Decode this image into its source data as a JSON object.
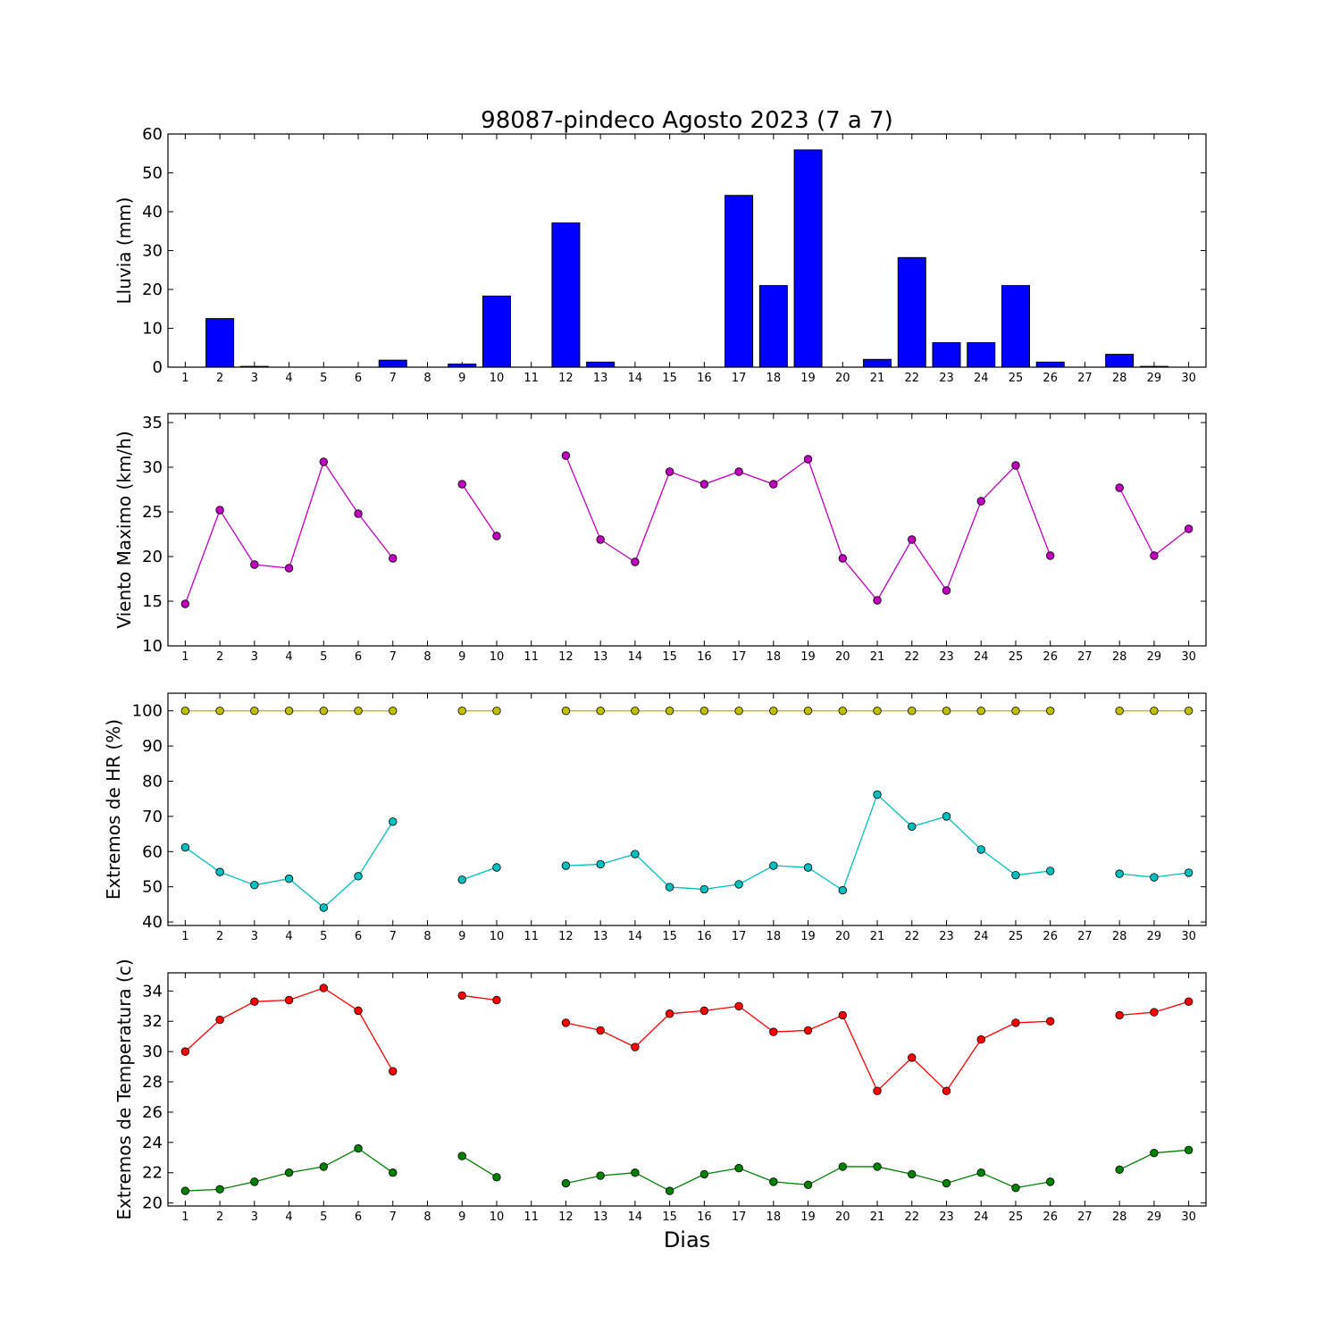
{
  "chart_data": [
    {
      "type": "bar",
      "title": "98087-pindeco Agosto 2023  (7 a 7)",
      "ylabel": "Lluvia (mm)",
      "xlabel": "",
      "ylim": [
        0,
        60
      ],
      "yticks": [
        0,
        10,
        20,
        30,
        40,
        50,
        60
      ],
      "x": [
        1,
        2,
        3,
        4,
        5,
        6,
        7,
        8,
        9,
        10,
        11,
        12,
        13,
        14,
        15,
        16,
        17,
        18,
        19,
        20,
        21,
        22,
        23,
        24,
        25,
        26,
        27,
        28,
        29,
        30
      ],
      "series": [
        {
          "color": "#0000ff",
          "values": [
            0,
            12.5,
            0.2,
            0,
            0,
            0,
            1.8,
            null,
            0.8,
            18.3,
            null,
            37.1,
            1.3,
            0,
            0,
            0,
            44.2,
            21,
            55.9,
            0,
            2,
            28.2,
            6.3,
            6.3,
            21,
            1.3,
            null,
            3.3,
            0.2,
            0
          ]
        }
      ]
    },
    {
      "type": "line",
      "ylabel": "Viento Maximo (km/h)",
      "ylim": [
        10,
        36
      ],
      "yticks": [
        10,
        15,
        20,
        25,
        30,
        35
      ],
      "x": [
        1,
        2,
        3,
        4,
        5,
        6,
        7,
        8,
        9,
        10,
        11,
        12,
        13,
        14,
        15,
        16,
        17,
        18,
        19,
        20,
        21,
        22,
        23,
        24,
        25,
        26,
        27,
        28,
        29,
        30
      ],
      "series": [
        {
          "color": "#bf00bf",
          "values": [
            14.7,
            25.2,
            19.1,
            18.7,
            30.6,
            24.8,
            19.8,
            null,
            28.1,
            22.3,
            null,
            31.3,
            21.9,
            19.4,
            29.5,
            28.1,
            29.5,
            28.1,
            30.9,
            19.8,
            15.1,
            21.9,
            16.2,
            26.2,
            30.2,
            20.1,
            null,
            27.7,
            20.1,
            23.1
          ]
        }
      ]
    },
    {
      "type": "line",
      "ylabel": "Extremos de HR (%)",
      "ylim": [
        39,
        105
      ],
      "yticks": [
        40,
        50,
        60,
        70,
        80,
        90,
        100
      ],
      "x": [
        1,
        2,
        3,
        4,
        5,
        6,
        7,
        8,
        9,
        10,
        11,
        12,
        13,
        14,
        15,
        16,
        17,
        18,
        19,
        20,
        21,
        22,
        23,
        24,
        25,
        26,
        27,
        28,
        29,
        30
      ],
      "series": [
        {
          "color": "#bfbf00",
          "values": [
            100,
            100,
            100,
            100,
            100,
            100,
            100,
            null,
            100,
            100,
            null,
            100,
            100,
            100,
            100,
            100,
            100,
            100,
            100,
            100,
            100,
            100,
            100,
            100,
            100,
            100,
            null,
            100,
            100,
            100
          ]
        },
        {
          "color": "#00bfbf",
          "values": [
            61.2,
            54.2,
            50.5,
            52.3,
            44.1,
            53,
            68.5,
            null,
            52,
            55.5,
            null,
            56,
            56.4,
            59.3,
            49.9,
            49.3,
            50.7,
            56,
            55.5,
            49,
            76.2,
            67.1,
            70,
            60.6,
            53.3,
            54.5,
            null,
            53.7,
            52.7,
            54
          ]
        }
      ]
    },
    {
      "type": "line",
      "ylabel": "Extremos de Temperatura (c)",
      "xlabel": "Dias",
      "ylim": [
        19.8,
        35.2
      ],
      "yticks": [
        20,
        22,
        24,
        26,
        28,
        30,
        32,
        34
      ],
      "x": [
        1,
        2,
        3,
        4,
        5,
        6,
        7,
        8,
        9,
        10,
        11,
        12,
        13,
        14,
        15,
        16,
        17,
        18,
        19,
        20,
        21,
        22,
        23,
        24,
        25,
        26,
        27,
        28,
        29,
        30
      ],
      "series": [
        {
          "color": "#ff0000",
          "values": [
            30,
            32.1,
            33.3,
            33.4,
            34.2,
            32.7,
            28.7,
            null,
            33.7,
            33.4,
            null,
            31.9,
            31.4,
            30.3,
            32.5,
            32.7,
            33,
            31.3,
            31.4,
            32.4,
            27.4,
            29.6,
            27.4,
            30.8,
            31.9,
            32,
            null,
            32.4,
            32.6,
            33.3
          ]
        },
        {
          "color": "#008000",
          "values": [
            20.8,
            20.9,
            21.4,
            22,
            22.4,
            23.6,
            22,
            null,
            23.1,
            21.7,
            null,
            21.3,
            21.8,
            22,
            20.8,
            21.9,
            22.3,
            21.4,
            21.2,
            22.4,
            22.4,
            21.9,
            21.3,
            22,
            21,
            21.4,
            null,
            22.2,
            23.3,
            23.5
          ]
        }
      ]
    }
  ]
}
